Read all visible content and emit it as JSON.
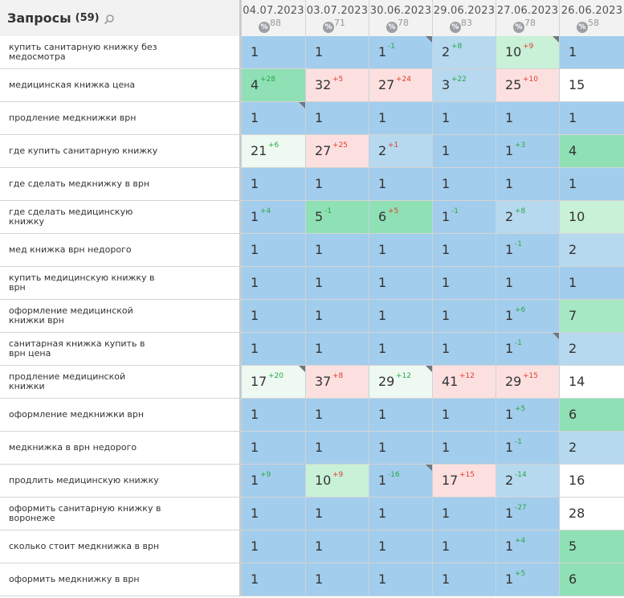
{
  "header": {
    "title": "Запросы",
    "count": "(59)",
    "dates": [
      {
        "date": "04.07.2023",
        "pct_label": "%",
        "value": "88"
      },
      {
        "date": "03.07.2023",
        "pct_label": "%",
        "value": "71"
      },
      {
        "date": "30.06.2023",
        "pct_label": "%",
        "value": "78"
      },
      {
        "date": "29.06.2023",
        "pct_label": "%",
        "value": "83"
      },
      {
        "date": "27.06.2023",
        "pct_label": "%",
        "value": "78"
      },
      {
        "date": "26.06.2023",
        "pct_label": "%",
        "value": "58"
      }
    ]
  },
  "colors": {
    "top": "#a3cdec",
    "light_blue": "#b6d9ef",
    "green": "#8fe0b4",
    "mid_green": "#a7e8c4",
    "light_green": "#c9f1d7",
    "pale_green": "#edf9f1",
    "pink": "#fce0df",
    "white": "#ffffff",
    "up": "#27a845",
    "down": "#e03b2d"
  },
  "rows": [
    {
      "query": "купить санитарную книжку без медосмотра",
      "cells": [
        {
          "pos": "1",
          "delta": "",
          "dir": "",
          "bg": "top",
          "mark": false
        },
        {
          "pos": "1",
          "delta": "",
          "dir": "",
          "bg": "top",
          "mark": false
        },
        {
          "pos": "1",
          "delta": "-1",
          "dir": "up",
          "bg": "top",
          "mark": true
        },
        {
          "pos": "2",
          "delta": "+8",
          "dir": "up",
          "bg": "light_blue",
          "mark": false
        },
        {
          "pos": "10",
          "delta": "+9",
          "dir": "down",
          "bg": "light_green",
          "mark": true
        },
        {
          "pos": "1",
          "delta": "",
          "dir": "",
          "bg": "top",
          "mark": false
        }
      ]
    },
    {
      "query": "медицинская книжка цена",
      "cells": [
        {
          "pos": "4",
          "delta": "+28",
          "dir": "up",
          "bg": "green",
          "mark": false
        },
        {
          "pos": "32",
          "delta": "+5",
          "dir": "down",
          "bg": "pink",
          "mark": false
        },
        {
          "pos": "27",
          "delta": "+24",
          "dir": "down",
          "bg": "pink",
          "mark": false
        },
        {
          "pos": "3",
          "delta": "+22",
          "dir": "up",
          "bg": "light_blue",
          "mark": false
        },
        {
          "pos": "25",
          "delta": "+10",
          "dir": "down",
          "bg": "pink",
          "mark": false
        },
        {
          "pos": "15",
          "delta": "",
          "dir": "",
          "bg": "white",
          "mark": false
        }
      ]
    },
    {
      "query": "продление медкнижки врн",
      "cells": [
        {
          "pos": "1",
          "delta": "",
          "dir": "",
          "bg": "top",
          "mark": true
        },
        {
          "pos": "1",
          "delta": "",
          "dir": "",
          "bg": "top",
          "mark": false
        },
        {
          "pos": "1",
          "delta": "",
          "dir": "",
          "bg": "top",
          "mark": false
        },
        {
          "pos": "1",
          "delta": "",
          "dir": "",
          "bg": "top",
          "mark": false
        },
        {
          "pos": "1",
          "delta": "",
          "dir": "",
          "bg": "top",
          "mark": false
        },
        {
          "pos": "1",
          "delta": "",
          "dir": "",
          "bg": "top",
          "mark": false
        }
      ]
    },
    {
      "query": "где купить санитарную книжку",
      "cells": [
        {
          "pos": "21",
          "delta": "+6",
          "dir": "up",
          "bg": "pale_green",
          "mark": false
        },
        {
          "pos": "27",
          "delta": "+25",
          "dir": "down",
          "bg": "pink",
          "mark": false
        },
        {
          "pos": "2",
          "delta": "+1",
          "dir": "down",
          "bg": "light_blue",
          "mark": false
        },
        {
          "pos": "1",
          "delta": "",
          "dir": "",
          "bg": "top",
          "mark": false
        },
        {
          "pos": "1",
          "delta": "+3",
          "dir": "up",
          "bg": "top",
          "mark": false
        },
        {
          "pos": "4",
          "delta": "",
          "dir": "",
          "bg": "green",
          "mark": false
        }
      ]
    },
    {
      "query": "где сделать медкнижку в врн",
      "cells": [
        {
          "pos": "1",
          "delta": "",
          "dir": "",
          "bg": "top",
          "mark": false
        },
        {
          "pos": "1",
          "delta": "",
          "dir": "",
          "bg": "top",
          "mark": false
        },
        {
          "pos": "1",
          "delta": "",
          "dir": "",
          "bg": "top",
          "mark": false
        },
        {
          "pos": "1",
          "delta": "",
          "dir": "",
          "bg": "top",
          "mark": false
        },
        {
          "pos": "1",
          "delta": "",
          "dir": "",
          "bg": "top",
          "mark": false
        },
        {
          "pos": "1",
          "delta": "",
          "dir": "",
          "bg": "top",
          "mark": false
        }
      ]
    },
    {
      "query": "где сделать медицинскую книжку",
      "cells": [
        {
          "pos": "1",
          "delta": "+4",
          "dir": "up",
          "bg": "top",
          "mark": false
        },
        {
          "pos": "5",
          "delta": "-1",
          "dir": "up",
          "bg": "green",
          "mark": false
        },
        {
          "pos": "6",
          "delta": "+5",
          "dir": "down",
          "bg": "green",
          "mark": false
        },
        {
          "pos": "1",
          "delta": "-1",
          "dir": "up",
          "bg": "top",
          "mark": false
        },
        {
          "pos": "2",
          "delta": "+8",
          "dir": "up",
          "bg": "light_blue",
          "mark": false
        },
        {
          "pos": "10",
          "delta": "",
          "dir": "",
          "bg": "light_green",
          "mark": false
        }
      ]
    },
    {
      "query": "мед книжка врн недорого",
      "cells": [
        {
          "pos": "1",
          "delta": "",
          "dir": "",
          "bg": "top",
          "mark": false
        },
        {
          "pos": "1",
          "delta": "",
          "dir": "",
          "bg": "top",
          "mark": false
        },
        {
          "pos": "1",
          "delta": "",
          "dir": "",
          "bg": "top",
          "mark": false
        },
        {
          "pos": "1",
          "delta": "",
          "dir": "",
          "bg": "top",
          "mark": false
        },
        {
          "pos": "1",
          "delta": "-1",
          "dir": "up",
          "bg": "top",
          "mark": false
        },
        {
          "pos": "2",
          "delta": "",
          "dir": "",
          "bg": "light_blue",
          "mark": false
        }
      ]
    },
    {
      "query": "купить медицинскую книжку в врн",
      "cells": [
        {
          "pos": "1",
          "delta": "",
          "dir": "",
          "bg": "top",
          "mark": false
        },
        {
          "pos": "1",
          "delta": "",
          "dir": "",
          "bg": "top",
          "mark": false
        },
        {
          "pos": "1",
          "delta": "",
          "dir": "",
          "bg": "top",
          "mark": false
        },
        {
          "pos": "1",
          "delta": "",
          "dir": "",
          "bg": "top",
          "mark": false
        },
        {
          "pos": "1",
          "delta": "",
          "dir": "",
          "bg": "top",
          "mark": false
        },
        {
          "pos": "1",
          "delta": "",
          "dir": "",
          "bg": "top",
          "mark": false
        }
      ]
    },
    {
      "query": "оформление медицинской книжки врн",
      "cells": [
        {
          "pos": "1",
          "delta": "",
          "dir": "",
          "bg": "top",
          "mark": false
        },
        {
          "pos": "1",
          "delta": "",
          "dir": "",
          "bg": "top",
          "mark": false
        },
        {
          "pos": "1",
          "delta": "",
          "dir": "",
          "bg": "top",
          "mark": false
        },
        {
          "pos": "1",
          "delta": "",
          "dir": "",
          "bg": "top",
          "mark": false
        },
        {
          "pos": "1",
          "delta": "+6",
          "dir": "up",
          "bg": "top",
          "mark": false
        },
        {
          "pos": "7",
          "delta": "",
          "dir": "",
          "bg": "mid_green",
          "mark": false
        }
      ]
    },
    {
      "query": "санитарная книжка купить в врн цена",
      "cells": [
        {
          "pos": "1",
          "delta": "",
          "dir": "",
          "bg": "top",
          "mark": false
        },
        {
          "pos": "1",
          "delta": "",
          "dir": "",
          "bg": "top",
          "mark": false
        },
        {
          "pos": "1",
          "delta": "",
          "dir": "",
          "bg": "top",
          "mark": false
        },
        {
          "pos": "1",
          "delta": "",
          "dir": "",
          "bg": "top",
          "mark": false
        },
        {
          "pos": "1",
          "delta": "-1",
          "dir": "up",
          "bg": "top",
          "mark": true
        },
        {
          "pos": "2",
          "delta": "",
          "dir": "",
          "bg": "light_blue",
          "mark": false
        }
      ]
    },
    {
      "query": "продление медицинской книжки",
      "cells": [
        {
          "pos": "17",
          "delta": "+20",
          "dir": "up",
          "bg": "pale_green",
          "mark": true
        },
        {
          "pos": "37",
          "delta": "+8",
          "dir": "down",
          "bg": "pink",
          "mark": false
        },
        {
          "pos": "29",
          "delta": "+12",
          "dir": "up",
          "bg": "pale_green",
          "mark": true
        },
        {
          "pos": "41",
          "delta": "+12",
          "dir": "down",
          "bg": "pink",
          "mark": false
        },
        {
          "pos": "29",
          "delta": "+15",
          "dir": "down",
          "bg": "pink",
          "mark": false
        },
        {
          "pos": "14",
          "delta": "",
          "dir": "",
          "bg": "white",
          "mark": false
        }
      ]
    },
    {
      "query": "оформление медкнижки врн",
      "cells": [
        {
          "pos": "1",
          "delta": "",
          "dir": "",
          "bg": "top",
          "mark": false
        },
        {
          "pos": "1",
          "delta": "",
          "dir": "",
          "bg": "top",
          "mark": false
        },
        {
          "pos": "1",
          "delta": "",
          "dir": "",
          "bg": "top",
          "mark": false
        },
        {
          "pos": "1",
          "delta": "",
          "dir": "",
          "bg": "top",
          "mark": false
        },
        {
          "pos": "1",
          "delta": "+5",
          "dir": "up",
          "bg": "top",
          "mark": false
        },
        {
          "pos": "6",
          "delta": "",
          "dir": "",
          "bg": "green",
          "mark": false
        }
      ]
    },
    {
      "query": "медкнижка в врн недорого",
      "cells": [
        {
          "pos": "1",
          "delta": "",
          "dir": "",
          "bg": "top",
          "mark": false
        },
        {
          "pos": "1",
          "delta": "",
          "dir": "",
          "bg": "top",
          "mark": false
        },
        {
          "pos": "1",
          "delta": "",
          "dir": "",
          "bg": "top",
          "mark": false
        },
        {
          "pos": "1",
          "delta": "",
          "dir": "",
          "bg": "top",
          "mark": false
        },
        {
          "pos": "1",
          "delta": "-1",
          "dir": "up",
          "bg": "top",
          "mark": false
        },
        {
          "pos": "2",
          "delta": "",
          "dir": "",
          "bg": "light_blue",
          "mark": false
        }
      ]
    },
    {
      "query": "продлить медицинскую книжку",
      "cells": [
        {
          "pos": "1",
          "delta": "+9",
          "dir": "up",
          "bg": "top",
          "mark": false
        },
        {
          "pos": "10",
          "delta": "+9",
          "dir": "down",
          "bg": "light_green",
          "mark": false
        },
        {
          "pos": "1",
          "delta": "-16",
          "dir": "up",
          "bg": "top",
          "mark": true
        },
        {
          "pos": "17",
          "delta": "+15",
          "dir": "down",
          "bg": "pink",
          "mark": false
        },
        {
          "pos": "2",
          "delta": "-14",
          "dir": "up",
          "bg": "light_blue",
          "mark": false
        },
        {
          "pos": "16",
          "delta": "",
          "dir": "",
          "bg": "white",
          "mark": false
        }
      ]
    },
    {
      "query": "оформить санитарную книжку в воронеже",
      "cells": [
        {
          "pos": "1",
          "delta": "",
          "dir": "",
          "bg": "top",
          "mark": false
        },
        {
          "pos": "1",
          "delta": "",
          "dir": "",
          "bg": "top",
          "mark": false
        },
        {
          "pos": "1",
          "delta": "",
          "dir": "",
          "bg": "top",
          "mark": false
        },
        {
          "pos": "1",
          "delta": "",
          "dir": "",
          "bg": "top",
          "mark": false
        },
        {
          "pos": "1",
          "delta": "-27",
          "dir": "up",
          "bg": "top",
          "mark": false
        },
        {
          "pos": "28",
          "delta": "",
          "dir": "",
          "bg": "white",
          "mark": false
        }
      ]
    },
    {
      "query": "сколько стоит медкнижка в врн",
      "cells": [
        {
          "pos": "1",
          "delta": "",
          "dir": "",
          "bg": "top",
          "mark": false
        },
        {
          "pos": "1",
          "delta": "",
          "dir": "",
          "bg": "top",
          "mark": false
        },
        {
          "pos": "1",
          "delta": "",
          "dir": "",
          "bg": "top",
          "mark": false
        },
        {
          "pos": "1",
          "delta": "",
          "dir": "",
          "bg": "top",
          "mark": false
        },
        {
          "pos": "1",
          "delta": "+4",
          "dir": "up",
          "bg": "top",
          "mark": false
        },
        {
          "pos": "5",
          "delta": "",
          "dir": "",
          "bg": "green",
          "mark": false
        }
      ]
    },
    {
      "query": "оформить медкнижку в врн",
      "cells": [
        {
          "pos": "1",
          "delta": "",
          "dir": "",
          "bg": "top",
          "mark": false
        },
        {
          "pos": "1",
          "delta": "",
          "dir": "",
          "bg": "top",
          "mark": false
        },
        {
          "pos": "1",
          "delta": "",
          "dir": "",
          "bg": "top",
          "mark": false
        },
        {
          "pos": "1",
          "delta": "",
          "dir": "",
          "bg": "top",
          "mark": false
        },
        {
          "pos": "1",
          "delta": "+5",
          "dir": "up",
          "bg": "top",
          "mark": false
        },
        {
          "pos": "6",
          "delta": "",
          "dir": "",
          "bg": "green",
          "mark": false
        }
      ]
    }
  ]
}
